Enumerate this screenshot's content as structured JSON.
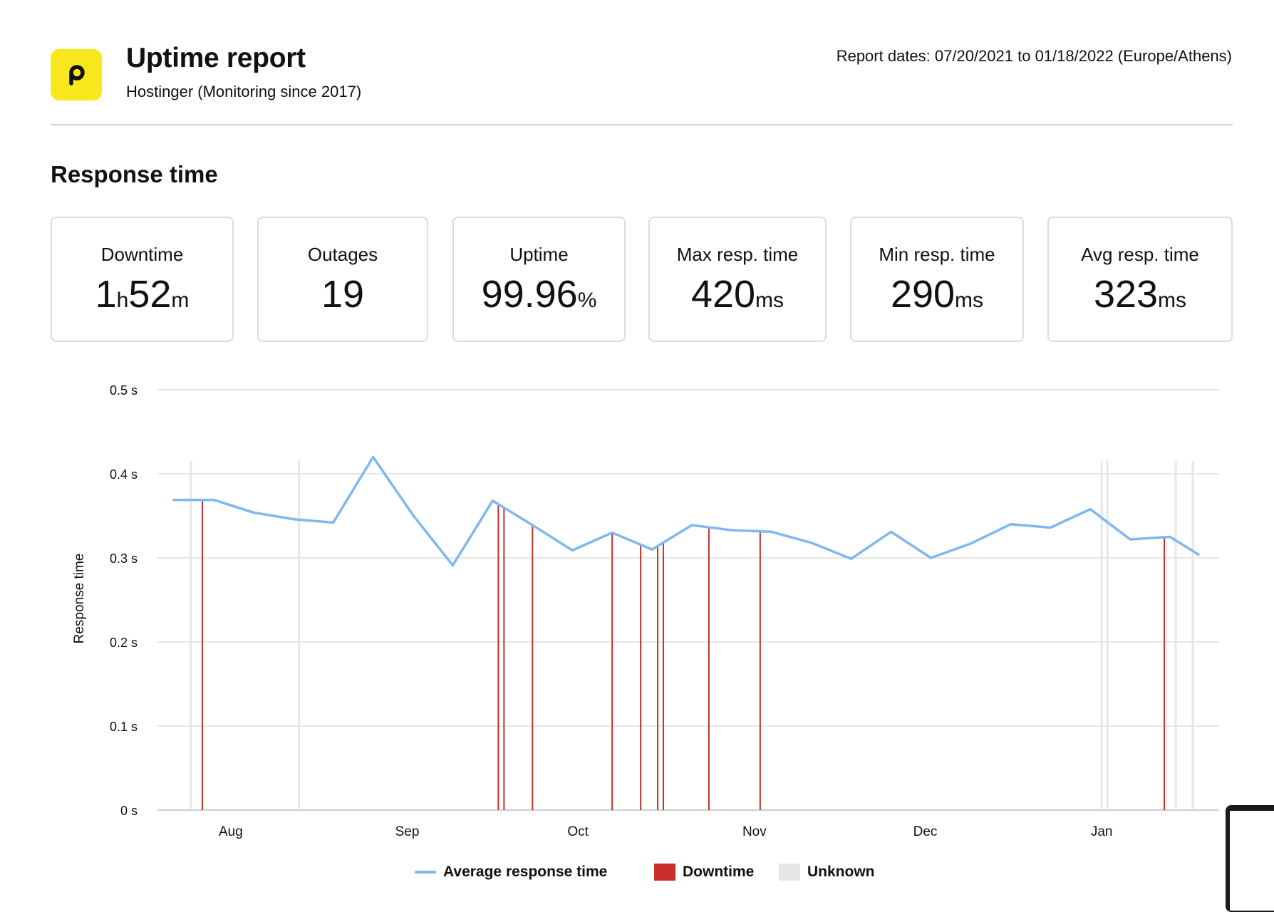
{
  "header": {
    "logo_letter": "p",
    "title": "Uptime report",
    "subtitle": "Hostinger (Monitoring since 2017)",
    "report_dates": "Report dates: 07/20/2021 to 01/18/2022 (Europe/Athens)"
  },
  "section_title": "Response time",
  "stats": [
    {
      "label": "Downtime",
      "value_parts": [
        [
          "1",
          ""
        ],
        [
          "h",
          "unit"
        ],
        [
          "52",
          ""
        ],
        [
          "m",
          "unit"
        ]
      ]
    },
    {
      "label": "Outages",
      "value_parts": [
        [
          "19",
          ""
        ]
      ]
    },
    {
      "label": "Uptime",
      "value_parts": [
        [
          "99.96",
          ""
        ],
        [
          "%",
          "unit"
        ]
      ]
    },
    {
      "label": "Max resp. time",
      "value_parts": [
        [
          "420",
          ""
        ],
        [
          "ms",
          "unit"
        ]
      ]
    },
    {
      "label": "Min resp. time",
      "value_parts": [
        [
          "290",
          ""
        ],
        [
          "ms",
          "unit"
        ]
      ]
    },
    {
      "label": "Avg resp. time",
      "value_parts": [
        [
          "323",
          ""
        ],
        [
          "ms",
          "unit"
        ]
      ]
    }
  ],
  "colors": {
    "logo_bg": "#f8e71c",
    "line": "#7fb8ef",
    "downtime": "#c9302c",
    "unknown": "#e6e6e6",
    "grid": "#dddddd"
  },
  "chart_data": {
    "type": "line",
    "ylabel": "Response time",
    "ylim": [
      0,
      0.5
    ],
    "yticks": [
      0,
      0.1,
      0.2,
      0.3,
      0.4,
      0.5
    ],
    "ytick_labels": [
      "0 s",
      "0.1 s",
      "0.2 s",
      "0.3 s",
      "0.4 s",
      "0.5 s"
    ],
    "xlim": [
      "2021-07-20",
      "2022-01-18"
    ],
    "xticks": [
      {
        "label": "Aug",
        "date": "2021-08-01"
      },
      {
        "label": "Sep",
        "date": "2021-09-01"
      },
      {
        "label": "Oct",
        "date": "2021-10-01"
      },
      {
        "label": "Nov",
        "date": "2021-11-01"
      },
      {
        "label": "Dec",
        "date": "2021-12-01"
      },
      {
        "label": "Jan",
        "date": "2022-01-01"
      }
    ],
    "grid": true,
    "legend_position": "bottom",
    "series": [
      {
        "name": "Average response time",
        "x": [
          "2021-07-22",
          "2021-07-29",
          "2021-08-05",
          "2021-08-12",
          "2021-08-19",
          "2021-08-26",
          "2021-09-02",
          "2021-09-09",
          "2021-09-16",
          "2021-09-23",
          "2021-09-30",
          "2021-10-07",
          "2021-10-14",
          "2021-10-21",
          "2021-10-28",
          "2021-11-04",
          "2021-11-11",
          "2021-11-18",
          "2021-11-25",
          "2021-12-02",
          "2021-12-09",
          "2021-12-16",
          "2021-12-23",
          "2021-12-30",
          "2022-01-06",
          "2022-01-13",
          "2022-01-18"
        ],
        "y": [
          0.369,
          0.369,
          0.354,
          0.346,
          0.342,
          0.42,
          0.351,
          0.291,
          0.368,
          0.339,
          0.309,
          0.33,
          0.31,
          0.339,
          0.333,
          0.331,
          0.318,
          0.299,
          0.331,
          0.3,
          0.317,
          0.34,
          0.336,
          0.358,
          0.322,
          0.325,
          0.304
        ]
      }
    ],
    "downtime_dates": [
      "2021-07-27",
      "2021-09-17",
      "2021-09-18",
      "2021-09-23",
      "2021-10-07",
      "2021-10-12",
      "2021-10-15",
      "2021-10-16",
      "2021-10-24",
      "2021-11-02",
      "2022-01-12"
    ],
    "unknown_dates": [
      "2021-07-25",
      "2021-08-13",
      "2022-01-01",
      "2022-01-02",
      "2022-01-14",
      "2022-01-17"
    ],
    "legend": [
      {
        "label": "Average response time",
        "kind": "line"
      },
      {
        "label": "Downtime",
        "kind": "box"
      },
      {
        "label": "Unknown",
        "kind": "box"
      }
    ]
  }
}
